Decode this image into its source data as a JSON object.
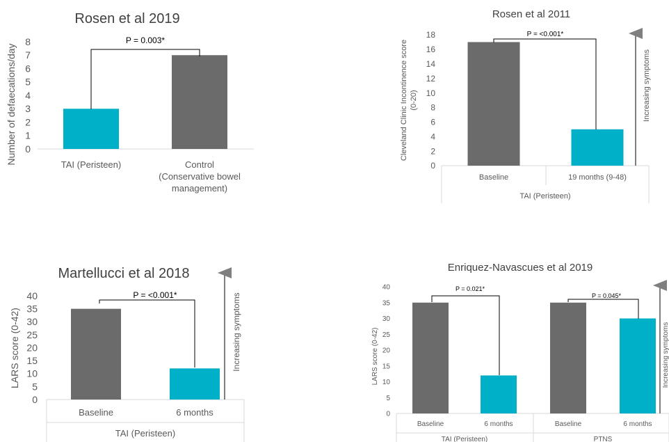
{
  "colors": {
    "grey": "#6b6b6b",
    "cyan": "#00b0c8",
    "axis": "#d9d9d9",
    "text": "#595959",
    "bracket": "#000000",
    "arrow": "#7f7f7f"
  },
  "chart_data": [
    {
      "type": "bar",
      "title": "Rosen et al 2019",
      "ylabel": "Number of defaecations/day",
      "ylim": [
        0,
        8
      ],
      "yticks": [
        "0",
        "1",
        "2",
        "3",
        "4",
        "5",
        "6",
        "7",
        "8"
      ],
      "categories": [
        [
          "TAI (Peristeen)"
        ],
        [
          "Control",
          "(Conservative bowel",
          "management)"
        ]
      ],
      "values": [
        3,
        7
      ],
      "bar_colors": [
        "cyan",
        "grey"
      ],
      "annotation": "P = 0.003*"
    },
    {
      "type": "bar",
      "title": "Rosen et al 2011",
      "ylabel": [
        "Cleveland Clinic Incontinence score",
        "(0-20)"
      ],
      "ylim": [
        0,
        18
      ],
      "yticks": [
        "0",
        "2",
        "4",
        "6",
        "8",
        "10",
        "12",
        "14",
        "16",
        "18"
      ],
      "categories": [
        "Baseline",
        "19 months (9-48)"
      ],
      "group_label": "TAI (Peristeen)",
      "values": [
        17,
        5
      ],
      "bar_colors": [
        "grey",
        "cyan"
      ],
      "annotation": "P = <0.001*",
      "arrow_label": "Increasing symptoms"
    },
    {
      "type": "bar",
      "title": "Martellucci et al 2018",
      "ylabel": "LARS score (0-42)",
      "ylim": [
        0,
        40
      ],
      "yticks": [
        "0",
        "5",
        "10",
        "15",
        "20",
        "25",
        "30",
        "35",
        "40"
      ],
      "categories": [
        "Baseline",
        "6 months"
      ],
      "group_label": "TAI (Peristeen)",
      "values": [
        35,
        12
      ],
      "bar_colors": [
        "grey",
        "cyan"
      ],
      "annotation": "P = <0.001*",
      "arrow_label": "Increasing symptoms"
    },
    {
      "type": "bar",
      "title": "Enriquez-Navascues et al 2019",
      "ylabel": "LARS score (0-42)",
      "ylim": [
        0,
        40
      ],
      "yticks": [
        "0",
        "5",
        "10",
        "15",
        "20",
        "25",
        "30",
        "35",
        "40"
      ],
      "categories": [
        "Baseline",
        "6 months",
        "Baseline",
        "6 months"
      ],
      "groups": [
        "TAI (Peristeen)",
        "PTNS"
      ],
      "values": [
        35,
        12,
        35,
        30
      ],
      "bar_colors": [
        "grey",
        "cyan",
        "grey",
        "cyan"
      ],
      "annotations": [
        "P = 0.021*",
        "P = 0.045*"
      ],
      "arrow_label": "Increasing symptoms"
    }
  ]
}
